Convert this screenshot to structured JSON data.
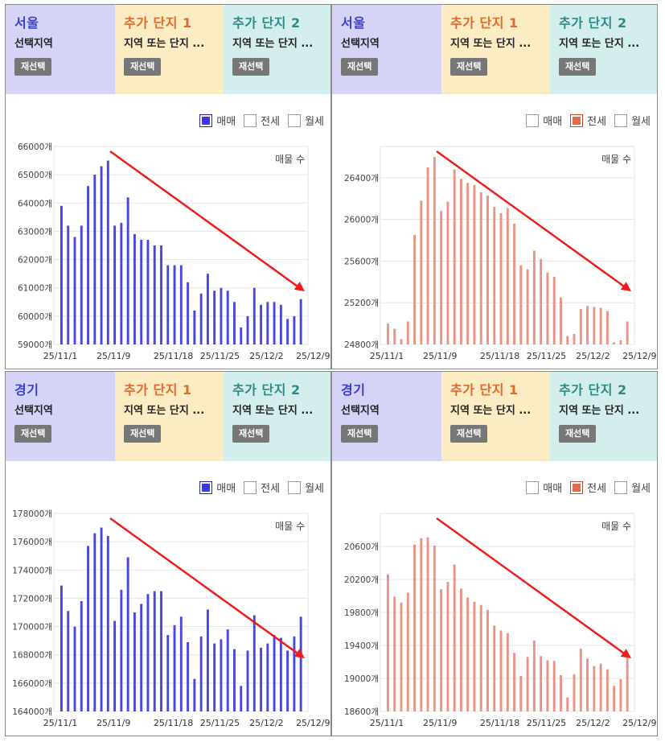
{
  "colors": {
    "buy": "#4646e6",
    "jeonse": "#ea9384",
    "arrow": "#ee1c1c",
    "grid": "#e6e6e6"
  },
  "legend": {
    "buy": "매매",
    "jeonse": "전세",
    "monthly": "월세"
  },
  "panels": [
    {
      "region_title": "서울",
      "region_sub": "선택지역",
      "btn": "재선택",
      "c1_title": "추가 단지 1",
      "c1_sub": "지역 또는 단지 ...",
      "c1_btn": "재선택",
      "c2_title": "추가 단지 2",
      "c2_sub": "지역 또는 단지 ...",
      "c2_btn": "재선택",
      "active": "buy",
      "unit_label": "매물 수"
    },
    {
      "region_title": "서울",
      "region_sub": "선택지역",
      "btn": "재선택",
      "c1_title": "추가 단지 1",
      "c1_sub": "지역 또는 단지 ...",
      "c1_btn": "재선택",
      "c2_title": "추가 단지 2",
      "c2_sub": "지역 또는 단지 ...",
      "c2_btn": "재선택",
      "active": "jeonse",
      "unit_label": "매물 수"
    },
    {
      "region_title": "경기",
      "region_sub": "선택지역",
      "btn": "재선택",
      "c1_title": "추가 단지 1",
      "c1_sub": "지역 또는 단지 ...",
      "c1_btn": "재선택",
      "c2_title": "추가 단지 2",
      "c2_sub": "지역 또는 단지 ...",
      "c2_btn": "재선택",
      "active": "buy",
      "unit_label": "매물 수"
    },
    {
      "region_title": "경기",
      "region_sub": "선택지역",
      "btn": "재선택",
      "c1_title": "추가 단지 1",
      "c1_sub": "지역 또는 단지 ...",
      "c1_btn": "재선택",
      "c2_title": "추가 단지 2",
      "c2_sub": "지역 또는 단지 ...",
      "c2_btn": "재선택",
      "active": "jeonse",
      "unit_label": "매물 수"
    }
  ],
  "chart_data": [
    {
      "type": "bar",
      "title": "서울 매매 매물 수",
      "ylabel": "매물 수",
      "ylim": [
        59000,
        66000
      ],
      "yticks": [
        59000,
        60000,
        61000,
        62000,
        63000,
        64000,
        65000,
        66000
      ],
      "tick_suffix": "개",
      "xticks": [
        "25/11/1",
        "25/11/9",
        "25/11/18",
        "25/11/25",
        "25/12/2",
        "25/12/9"
      ],
      "xtick_index": [
        0,
        8,
        17,
        24,
        31,
        38
      ],
      "values": [
        63900,
        63200,
        62800,
        63200,
        64600,
        65000,
        65300,
        65500,
        63200,
        63300,
        64200,
        62900,
        62700,
        62700,
        62500,
        62500,
        61800,
        61800,
        61800,
        61200,
        60200,
        60800,
        61500,
        60900,
        61000,
        60900,
        60500,
        59600,
        60000,
        61000,
        60400,
        60500,
        60500,
        60400,
        59900,
        60000,
        60600
      ],
      "trend_arrow": "downward"
    },
    {
      "type": "bar",
      "title": "서울 전세 매물 수",
      "ylabel": "매물 수",
      "ylim": [
        24800,
        26700
      ],
      "yticks": [
        24800,
        25200,
        25600,
        26000,
        26400
      ],
      "tick_suffix": "개",
      "xticks": [
        "25/11/1",
        "25/11/9",
        "25/11/18",
        "25/11/25",
        "25/12/2",
        "25/12/9"
      ],
      "xtick_index": [
        0,
        8,
        17,
        24,
        31,
        38
      ],
      "values": [
        25000,
        24950,
        24850,
        25020,
        25850,
        26180,
        26500,
        26600,
        26080,
        26170,
        26480,
        26390,
        26350,
        26330,
        26260,
        26230,
        26120,
        26060,
        26110,
        25960,
        25560,
        25520,
        25700,
        25620,
        25490,
        25450,
        25250,
        24880,
        24900,
        25140,
        25170,
        25160,
        25150,
        25120,
        24820,
        24840,
        25020
      ],
      "trend_arrow": "downward"
    },
    {
      "type": "bar",
      "title": "경기 매매 매물 수",
      "ylabel": "매물 수",
      "ylim": [
        164000,
        178000
      ],
      "yticks": [
        164000,
        166000,
        168000,
        170000,
        172000,
        174000,
        176000,
        178000
      ],
      "tick_suffix": "개",
      "xticks": [
        "25/11/1",
        "25/11/9",
        "25/11/18",
        "25/11/25",
        "25/12/2",
        "25/12/9"
      ],
      "xtick_index": [
        0,
        8,
        17,
        24,
        31,
        38
      ],
      "values": [
        172900,
        171100,
        170000,
        171800,
        175700,
        176600,
        177000,
        176400,
        170400,
        172600,
        174900,
        171000,
        171600,
        172300,
        172500,
        172500,
        169400,
        170100,
        170700,
        168900,
        166300,
        169300,
        171200,
        168800,
        169100,
        169800,
        168400,
        165800,
        168300,
        170800,
        168500,
        168800,
        169400,
        169200,
        168300,
        169300,
        170700
      ],
      "trend_arrow": "downward"
    },
    {
      "type": "bar",
      "title": "경기 전세 매물 수",
      "ylabel": "매물 수",
      "ylim": [
        18600,
        21000
      ],
      "yticks": [
        18600,
        19000,
        19400,
        19800,
        20200,
        20600
      ],
      "tick_suffix": "개",
      "xticks": [
        "25/11/1",
        "25/11/9",
        "25/11/18",
        "25/11/25",
        "25/12/2",
        "25/12/9"
      ],
      "xtick_index": [
        0,
        8,
        17,
        24,
        31,
        38
      ],
      "values": [
        20260,
        19990,
        19920,
        20040,
        20620,
        20700,
        20710,
        20610,
        20080,
        20170,
        20380,
        20090,
        19980,
        19930,
        19890,
        19830,
        19640,
        19580,
        19550,
        19310,
        19030,
        19260,
        19460,
        19270,
        19220,
        19210,
        19040,
        18770,
        19050,
        19360,
        19240,
        19150,
        19180,
        19110,
        18910,
        18990,
        19250
      ],
      "trend_arrow": "downward"
    }
  ]
}
